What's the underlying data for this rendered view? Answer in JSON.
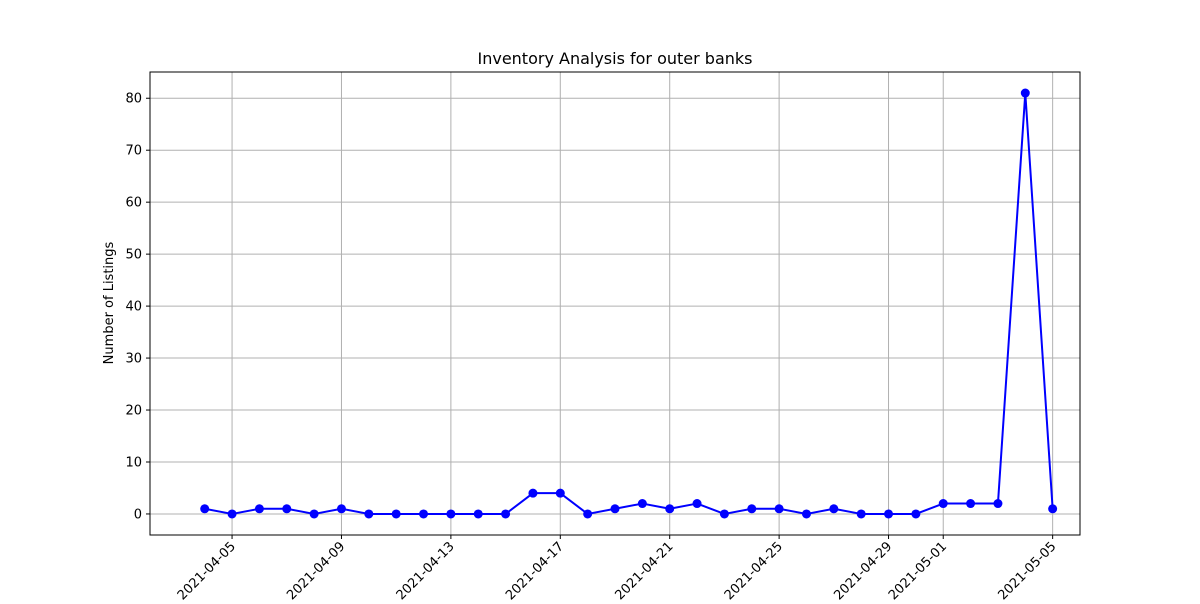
{
  "chart_data": {
    "type": "line",
    "title": "Inventory Analysis for outer banks",
    "xlabel": "",
    "ylabel": "Number of Listings",
    "x_type": "date",
    "xlim": [
      "2021-04-02",
      "2021-05-06"
    ],
    "ylim": [
      -4.05,
      85.05
    ],
    "grid": true,
    "x_ticks": [
      "2021-04-05",
      "2021-04-09",
      "2021-04-13",
      "2021-04-17",
      "2021-04-21",
      "2021-04-25",
      "2021-04-29",
      "2021-05-01",
      "2021-05-05"
    ],
    "y_ticks": [
      0,
      10,
      20,
      30,
      40,
      50,
      60,
      70,
      80
    ],
    "series": [
      {
        "color": "#0000ff",
        "marker": "circle",
        "x": [
          "2021-04-04",
          "2021-04-05",
          "2021-04-06",
          "2021-04-07",
          "2021-04-08",
          "2021-04-09",
          "2021-04-10",
          "2021-04-11",
          "2021-04-12",
          "2021-04-13",
          "2021-04-14",
          "2021-04-15",
          "2021-04-16",
          "2021-04-17",
          "2021-04-18",
          "2021-04-19",
          "2021-04-20",
          "2021-04-21",
          "2021-04-22",
          "2021-04-23",
          "2021-04-24",
          "2021-04-25",
          "2021-04-26",
          "2021-04-27",
          "2021-04-28",
          "2021-04-29",
          "2021-04-30",
          "2021-05-01",
          "2021-05-02",
          "2021-05-03",
          "2021-05-04",
          "2021-05-05"
        ],
        "values": [
          1,
          0,
          1,
          1,
          0,
          1,
          0,
          0,
          0,
          0,
          0,
          0,
          4,
          4,
          0,
          1,
          2,
          1,
          2,
          0,
          1,
          1,
          0,
          1,
          0,
          0,
          0,
          2,
          2,
          2,
          81,
          1
        ]
      }
    ]
  }
}
